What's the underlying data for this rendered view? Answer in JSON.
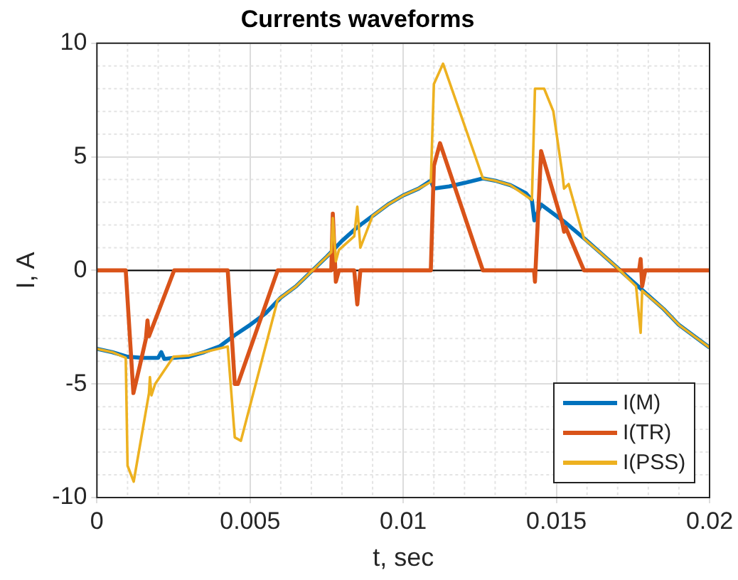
{
  "chart_data": {
    "type": "line",
    "title": "Currents waveforms",
    "xlabel": "t, sec",
    "ylabel": "I, A",
    "xlim": [
      0,
      0.02
    ],
    "xticks": [
      0,
      0.005,
      0.01,
      0.015,
      0.02
    ],
    "ylim": [
      -10,
      10
    ],
    "yticks": [
      -10,
      -5,
      0,
      5,
      10
    ],
    "grid": true,
    "legend": "bottom right",
    "marker": "none",
    "line_style": "solid",
    "ref_lines": [
      {
        "axis": "y",
        "value": 0,
        "color": "#000000"
      }
    ],
    "series": [
      {
        "name": "I(M)",
        "color": "#0072bd",
        "x": [
          0,
          0.0005,
          0.001,
          0.0015,
          0.002,
          0.0021,
          0.0022,
          0.0025,
          0.003,
          0.0035,
          0.004,
          0.0045,
          0.005,
          0.0055,
          0.006,
          0.0065,
          0.007,
          0.0075,
          0.008,
          0.0085,
          0.009,
          0.0095,
          0.01,
          0.0105,
          0.0109,
          0.011,
          0.0115,
          0.012,
          0.0126,
          0.013,
          0.0135,
          0.014,
          0.0142,
          0.01428,
          0.0145,
          0.015,
          0.0153,
          0.016,
          0.0165,
          0.017,
          0.0175,
          0.018,
          0.0185,
          0.019,
          0.0195,
          0.02
        ],
        "values": [
          -3.45,
          -3.6,
          -3.8,
          -3.85,
          -3.85,
          -3.6,
          -3.9,
          -3.85,
          -3.8,
          -3.6,
          -3.35,
          -2.85,
          -2.4,
          -1.9,
          -1.2,
          -0.7,
          -0.05,
          0.6,
          1.3,
          1.9,
          2.4,
          2.9,
          3.3,
          3.6,
          3.95,
          3.6,
          3.7,
          3.85,
          4.05,
          3.95,
          3.75,
          3.4,
          3.1,
          2.2,
          2.9,
          2.4,
          2.1,
          1.3,
          0.7,
          0.1,
          -0.5,
          -1.1,
          -1.7,
          -2.4,
          -2.9,
          -3.4
        ]
      },
      {
        "name": "I(TR)",
        "color": "#d95319",
        "x": [
          0,
          0.00094,
          0.00119,
          0.0014,
          0.0016,
          0.00165,
          0.0017,
          0.00252,
          0.00427,
          0.0045,
          0.0046,
          0.0059,
          0.00765,
          0.0077,
          0.0078,
          0.0079,
          0.0084,
          0.0085,
          0.0086,
          0.0109,
          0.011,
          0.0112,
          0.0126,
          0.01427,
          0.0143,
          0.0145,
          0.0152,
          0.01525,
          0.0153,
          0.0159,
          0.0177,
          0.01775,
          0.0178,
          0.0179,
          0.02
        ],
        "values": [
          0,
          0,
          -5.4,
          -4.2,
          -3.0,
          -2.2,
          -2.9,
          0,
          0,
          -5.0,
          -5.0,
          0,
          0,
          2.5,
          -0.5,
          0,
          0,
          -1.5,
          0,
          0,
          4.6,
          5.6,
          0,
          0,
          -0.5,
          5.25,
          2.05,
          1.7,
          1.9,
          0,
          0,
          0.5,
          -0.7,
          0,
          0
        ]
      },
      {
        "name": "I(PSS)",
        "color": "#edb120",
        "x": [
          0,
          0.0005,
          0.00094,
          0.001,
          0.0012,
          0.0017,
          0.00173,
          0.00178,
          0.0019,
          0.0025,
          0.003,
          0.0035,
          0.00427,
          0.0045,
          0.0047,
          0.0059,
          0.0065,
          0.007,
          0.0075,
          0.00765,
          0.0077,
          0.0078,
          0.0079,
          0.0084,
          0.0085,
          0.0086,
          0.009,
          0.0095,
          0.01,
          0.0105,
          0.0109,
          0.011,
          0.0113,
          0.0126,
          0.013,
          0.0135,
          0.0142,
          0.0143,
          0.0146,
          0.0149,
          0.0152,
          0.01525,
          0.0154,
          0.0159,
          0.0165,
          0.017,
          0.0176,
          0.01775,
          0.0178,
          0.0185,
          0.019,
          0.0195,
          0.02
        ],
        "values": [
          -3.45,
          -3.6,
          -3.85,
          -8.6,
          -9.3,
          -5.4,
          -4.7,
          -5.5,
          -5.0,
          -3.8,
          -3.75,
          -3.6,
          -3.35,
          -7.35,
          -7.5,
          -1.3,
          -0.7,
          -0.05,
          0.6,
          0.8,
          2.3,
          0.4,
          0.9,
          1.5,
          2.8,
          1.0,
          2.4,
          2.9,
          3.3,
          3.6,
          3.9,
          8.2,
          9.1,
          4.05,
          3.95,
          3.75,
          3.1,
          8.0,
          8.0,
          7.0,
          4.2,
          3.6,
          3.8,
          1.4,
          0.7,
          0.1,
          -0.7,
          -2.75,
          -0.9,
          -1.7,
          -2.4,
          -2.9,
          -3.4
        ]
      }
    ]
  }
}
